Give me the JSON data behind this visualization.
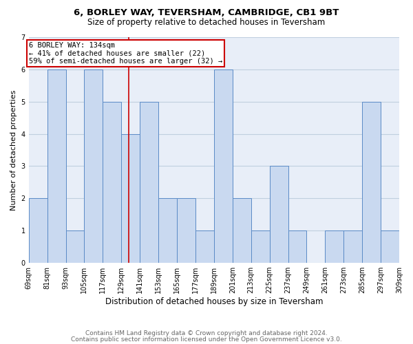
{
  "title": "6, BORLEY WAY, TEVERSHAM, CAMBRIDGE, CB1 9BT",
  "subtitle": "Size of property relative to detached houses in Teversham",
  "bar_left_edges": [
    69,
    81,
    93,
    105,
    117,
    129,
    141,
    153,
    165,
    177,
    189,
    201,
    213,
    225,
    237,
    249,
    261,
    273,
    285,
    297
  ],
  "bar_heights": [
    2,
    6,
    1,
    6,
    5,
    4,
    5,
    2,
    2,
    1,
    6,
    2,
    1,
    3,
    1,
    0,
    1,
    1,
    5,
    1
  ],
  "bin_width": 12,
  "xtick_labels": [
    "69sqm",
    "81sqm",
    "93sqm",
    "105sqm",
    "117sqm",
    "129sqm",
    "141sqm",
    "153sqm",
    "165sqm",
    "177sqm",
    "189sqm",
    "201sqm",
    "213sqm",
    "225sqm",
    "237sqm",
    "249sqm",
    "261sqm",
    "273sqm",
    "285sqm",
    "297sqm",
    "309sqm"
  ],
  "xtick_positions": [
    69,
    81,
    93,
    105,
    117,
    129,
    141,
    153,
    165,
    177,
    189,
    201,
    213,
    225,
    237,
    249,
    261,
    273,
    285,
    297,
    309
  ],
  "ylabel": "Number of detached properties",
  "xlabel": "Distribution of detached houses by size in Teversham",
  "ylim": [
    0,
    7
  ],
  "yticks": [
    0,
    1,
    2,
    3,
    4,
    5,
    6,
    7
  ],
  "bar_color": "#c9d9f0",
  "bar_edge_color": "#5a8ac6",
  "grid_color": "#c0cfdf",
  "background_color": "#e8eef8",
  "vline_x": 134,
  "vline_color": "#cc0000",
  "annotation_line1": "6 BORLEY WAY: 134sqm",
  "annotation_line2": "← 41% of detached houses are smaller (22)",
  "annotation_line3": "59% of semi-detached houses are larger (32) →",
  "footer_line1": "Contains HM Land Registry data © Crown copyright and database right 2024.",
  "footer_line2": "Contains public sector information licensed under the Open Government Licence v3.0.",
  "title_fontsize": 9.5,
  "subtitle_fontsize": 8.5,
  "ylabel_fontsize": 8,
  "xlabel_fontsize": 8.5,
  "tick_fontsize": 7,
  "annotation_fontsize": 7.5,
  "footer_fontsize": 6.5
}
